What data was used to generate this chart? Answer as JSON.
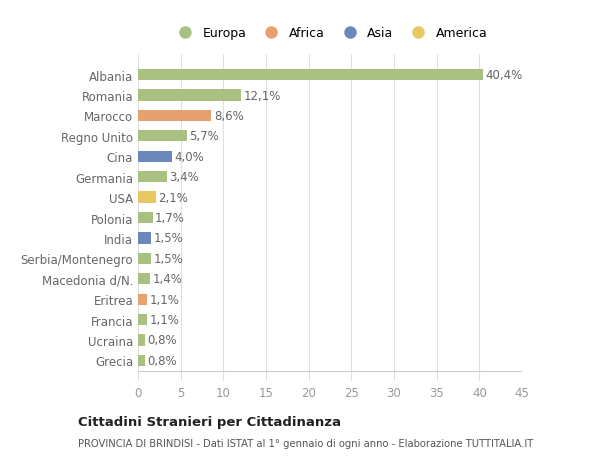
{
  "categories": [
    "Albania",
    "Romania",
    "Marocco",
    "Regno Unito",
    "Cina",
    "Germania",
    "USA",
    "Polonia",
    "India",
    "Serbia/Montenegro",
    "Macedonia d/N.",
    "Eritrea",
    "Francia",
    "Ucraina",
    "Grecia"
  ],
  "values": [
    40.4,
    12.1,
    8.6,
    5.7,
    4.0,
    3.4,
    2.1,
    1.7,
    1.5,
    1.5,
    1.4,
    1.1,
    1.1,
    0.8,
    0.8
  ],
  "labels": [
    "40,4%",
    "12,1%",
    "8,6%",
    "5,7%",
    "4,0%",
    "3,4%",
    "2,1%",
    "1,7%",
    "1,5%",
    "1,5%",
    "1,4%",
    "1,1%",
    "1,1%",
    "0,8%",
    "0,8%"
  ],
  "colors": [
    "#a8c080",
    "#a8c080",
    "#e8a070",
    "#a8c080",
    "#6b88bb",
    "#a8c080",
    "#e8c860",
    "#a8c080",
    "#6b88bb",
    "#a8c080",
    "#a8c080",
    "#e8a070",
    "#a8c080",
    "#a8c080",
    "#a8c080"
  ],
  "legend_labels": [
    "Europa",
    "Africa",
    "Asia",
    "America"
  ],
  "legend_colors": [
    "#a8c080",
    "#e8a070",
    "#6b88bb",
    "#e8c860"
  ],
  "title": "Cittadini Stranieri per Cittadinanza",
  "subtitle": "PROVINCIA DI BRINDISI - Dati ISTAT al 1° gennaio di ogni anno - Elaborazione TUTTITALIA.IT",
  "xlim": [
    0,
    45
  ],
  "xticks": [
    0,
    5,
    10,
    15,
    20,
    25,
    30,
    35,
    40,
    45
  ],
  "background_color": "#ffffff",
  "bar_height": 0.55,
  "grid_color": "#e0e0e0",
  "label_fontsize": 8.5,
  "tick_fontsize": 8.5,
  "ylabel_fontsize": 8.5
}
